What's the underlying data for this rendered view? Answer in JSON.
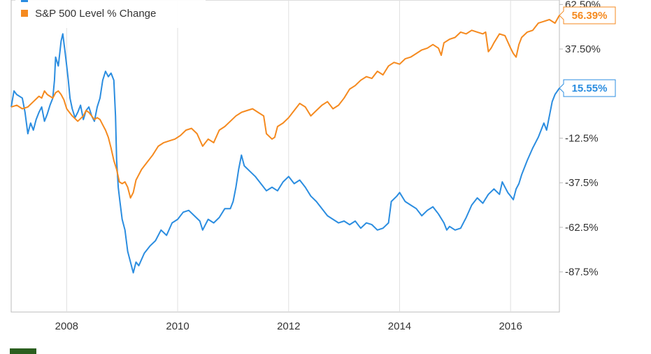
{
  "chart_data": {
    "type": "line",
    "title": "",
    "xlabel": "",
    "ylabel": "",
    "legend_position": "top-left",
    "grid": {
      "vertical": true,
      "horizontal": false
    },
    "x_range": [
      2007.0,
      2016.88
    ],
    "y_range": [
      -110,
      65
    ],
    "x_ticks": [
      {
        "value": 2008,
        "label": "2008"
      },
      {
        "value": 2010,
        "label": "2010"
      },
      {
        "value": 2012,
        "label": "2012"
      },
      {
        "value": 2014,
        "label": "2014"
      },
      {
        "value": 2016,
        "label": "2016"
      }
    ],
    "y_ticks": [
      {
        "value": 62.5,
        "label": "62.50%"
      },
      {
        "value": 37.5,
        "label": "37.50%"
      },
      {
        "value": -12.5,
        "label": "-12.5%"
      },
      {
        "value": -37.5,
        "label": "-37.5%"
      },
      {
        "value": -62.5,
        "label": "-62.5%"
      },
      {
        "value": -87.5,
        "label": "-87.5%"
      }
    ],
    "series": [
      {
        "name": "",
        "color": "#2b8de0",
        "end_label": "15.55%",
        "points": [
          [
            2007.0,
            5
          ],
          [
            2007.05,
            14
          ],
          [
            2007.1,
            12
          ],
          [
            2007.2,
            10
          ],
          [
            2007.25,
            2
          ],
          [
            2007.3,
            -10
          ],
          [
            2007.35,
            -4
          ],
          [
            2007.4,
            -8
          ],
          [
            2007.45,
            -2
          ],
          [
            2007.5,
            2
          ],
          [
            2007.55,
            5
          ],
          [
            2007.6,
            -3
          ],
          [
            2007.65,
            1
          ],
          [
            2007.7,
            6
          ],
          [
            2007.75,
            10
          ],
          [
            2007.78,
            20
          ],
          [
            2007.8,
            33
          ],
          [
            2007.85,
            28
          ],
          [
            2007.9,
            42
          ],
          [
            2007.93,
            46
          ],
          [
            2007.97,
            36
          ],
          [
            2008.0,
            28
          ],
          [
            2008.03,
            20
          ],
          [
            2008.06,
            10
          ],
          [
            2008.1,
            4
          ],
          [
            2008.15,
            -1
          ],
          [
            2008.2,
            2
          ],
          [
            2008.25,
            6
          ],
          [
            2008.3,
            -2
          ],
          [
            2008.35,
            3
          ],
          [
            2008.4,
            5
          ],
          [
            2008.45,
            0
          ],
          [
            2008.5,
            -3
          ],
          [
            2008.55,
            5
          ],
          [
            2008.6,
            10
          ],
          [
            2008.65,
            20
          ],
          [
            2008.7,
            25
          ],
          [
            2008.75,
            22
          ],
          [
            2008.8,
            24
          ],
          [
            2008.85,
            20
          ],
          [
            2008.88,
            0
          ],
          [
            2008.9,
            -25
          ],
          [
            2008.93,
            -40
          ],
          [
            2008.96,
            -48
          ],
          [
            2009.0,
            -58
          ],
          [
            2009.05,
            -64
          ],
          [
            2009.1,
            -76
          ],
          [
            2009.15,
            -82
          ],
          [
            2009.2,
            -88
          ],
          [
            2009.25,
            -82
          ],
          [
            2009.3,
            -84
          ],
          [
            2009.4,
            -77
          ],
          [
            2009.5,
            -73
          ],
          [
            2009.6,
            -70
          ],
          [
            2009.7,
            -64
          ],
          [
            2009.8,
            -67
          ],
          [
            2009.9,
            -60
          ],
          [
            2010.0,
            -58
          ],
          [
            2010.1,
            -54
          ],
          [
            2010.2,
            -53
          ],
          [
            2010.3,
            -56
          ],
          [
            2010.4,
            -59
          ],
          [
            2010.45,
            -64
          ],
          [
            2010.55,
            -58
          ],
          [
            2010.65,
            -60
          ],
          [
            2010.75,
            -57
          ],
          [
            2010.85,
            -52
          ],
          [
            2010.95,
            -52
          ],
          [
            2011.0,
            -48
          ],
          [
            2011.05,
            -40
          ],
          [
            2011.1,
            -30
          ],
          [
            2011.15,
            -22
          ],
          [
            2011.2,
            -28
          ],
          [
            2011.3,
            -31
          ],
          [
            2011.4,
            -34
          ],
          [
            2011.5,
            -38
          ],
          [
            2011.6,
            -42
          ],
          [
            2011.7,
            -40
          ],
          [
            2011.8,
            -42
          ],
          [
            2011.9,
            -37
          ],
          [
            2012.0,
            -34
          ],
          [
            2012.1,
            -38
          ],
          [
            2012.2,
            -36
          ],
          [
            2012.3,
            -40
          ],
          [
            2012.4,
            -45
          ],
          [
            2012.5,
            -48
          ],
          [
            2012.6,
            -52
          ],
          [
            2012.7,
            -56
          ],
          [
            2012.8,
            -58
          ],
          [
            2012.9,
            -60
          ],
          [
            2013.0,
            -59
          ],
          [
            2013.1,
            -61
          ],
          [
            2013.2,
            -59
          ],
          [
            2013.3,
            -63
          ],
          [
            2013.4,
            -60
          ],
          [
            2013.5,
            -61
          ],
          [
            2013.6,
            -64
          ],
          [
            2013.7,
            -63
          ],
          [
            2013.8,
            -60
          ],
          [
            2013.85,
            -48
          ],
          [
            2013.95,
            -45
          ],
          [
            2014.0,
            -43
          ],
          [
            2014.1,
            -48
          ],
          [
            2014.2,
            -50
          ],
          [
            2014.3,
            -52
          ],
          [
            2014.4,
            -56
          ],
          [
            2014.5,
            -53
          ],
          [
            2014.6,
            -51
          ],
          [
            2014.7,
            -55
          ],
          [
            2014.8,
            -60
          ],
          [
            2014.85,
            -64
          ],
          [
            2014.9,
            -62
          ],
          [
            2015.0,
            -64
          ],
          [
            2015.1,
            -63
          ],
          [
            2015.15,
            -60
          ],
          [
            2015.2,
            -57
          ],
          [
            2015.3,
            -50
          ],
          [
            2015.4,
            -46
          ],
          [
            2015.5,
            -49
          ],
          [
            2015.6,
            -44
          ],
          [
            2015.7,
            -41
          ],
          [
            2015.8,
            -44
          ],
          [
            2015.85,
            -37
          ],
          [
            2015.9,
            -40
          ],
          [
            2015.95,
            -43
          ],
          [
            2016.0,
            -45
          ],
          [
            2016.05,
            -47
          ],
          [
            2016.1,
            -41
          ],
          [
            2016.15,
            -38
          ],
          [
            2016.2,
            -33
          ],
          [
            2016.3,
            -25
          ],
          [
            2016.4,
            -18
          ],
          [
            2016.5,
            -12
          ],
          [
            2016.6,
            -4
          ],
          [
            2016.65,
            -8
          ],
          [
            2016.7,
            0
          ],
          [
            2016.75,
            8
          ],
          [
            2016.8,
            12
          ],
          [
            2016.88,
            15.55
          ]
        ]
      },
      {
        "name": "S&P 500 Level % Change",
        "color": "#f58a1f",
        "end_label": "56.39%",
        "points": [
          [
            2007.0,
            5
          ],
          [
            2007.1,
            6
          ],
          [
            2007.2,
            4
          ],
          [
            2007.3,
            5
          ],
          [
            2007.4,
            8
          ],
          [
            2007.5,
            11
          ],
          [
            2007.55,
            10
          ],
          [
            2007.6,
            14
          ],
          [
            2007.65,
            12
          ],
          [
            2007.7,
            11
          ],
          [
            2007.75,
            10
          ],
          [
            2007.8,
            13
          ],
          [
            2007.85,
            14
          ],
          [
            2007.9,
            12
          ],
          [
            2007.95,
            9
          ],
          [
            2008.0,
            4
          ],
          [
            2008.05,
            2
          ],
          [
            2008.1,
            0
          ],
          [
            2008.2,
            -3
          ],
          [
            2008.3,
            0
          ],
          [
            2008.35,
            3
          ],
          [
            2008.4,
            2
          ],
          [
            2008.5,
            -2
          ],
          [
            2008.55,
            -1
          ],
          [
            2008.6,
            -2
          ],
          [
            2008.65,
            -5
          ],
          [
            2008.7,
            -8
          ],
          [
            2008.75,
            -12
          ],
          [
            2008.8,
            -18
          ],
          [
            2008.85,
            -25
          ],
          [
            2008.9,
            -30
          ],
          [
            2008.95,
            -37
          ],
          [
            2009.0,
            -38
          ],
          [
            2009.05,
            -37
          ],
          [
            2009.1,
            -40
          ],
          [
            2009.15,
            -46
          ],
          [
            2009.2,
            -43
          ],
          [
            2009.25,
            -36
          ],
          [
            2009.35,
            -30
          ],
          [
            2009.45,
            -26
          ],
          [
            2009.55,
            -22
          ],
          [
            2009.65,
            -17
          ],
          [
            2009.75,
            -15
          ],
          [
            2009.85,
            -14
          ],
          [
            2009.95,
            -13
          ],
          [
            2010.05,
            -11
          ],
          [
            2010.15,
            -8
          ],
          [
            2010.25,
            -7
          ],
          [
            2010.35,
            -10
          ],
          [
            2010.45,
            -17
          ],
          [
            2010.55,
            -13
          ],
          [
            2010.65,
            -15
          ],
          [
            2010.75,
            -8
          ],
          [
            2010.85,
            -6
          ],
          [
            2010.95,
            -3
          ],
          [
            2011.05,
            0
          ],
          [
            2011.15,
            2
          ],
          [
            2011.25,
            3
          ],
          [
            2011.35,
            4
          ],
          [
            2011.45,
            2
          ],
          [
            2011.55,
            0
          ],
          [
            2011.6,
            -10
          ],
          [
            2011.7,
            -13
          ],
          [
            2011.75,
            -12
          ],
          [
            2011.8,
            -6
          ],
          [
            2011.9,
            -4
          ],
          [
            2012.0,
            -1
          ],
          [
            2012.1,
            3
          ],
          [
            2012.2,
            7
          ],
          [
            2012.3,
            5
          ],
          [
            2012.4,
            0
          ],
          [
            2012.5,
            3
          ],
          [
            2012.6,
            6
          ],
          [
            2012.7,
            8
          ],
          [
            2012.8,
            4
          ],
          [
            2012.9,
            6
          ],
          [
            2013.0,
            10
          ],
          [
            2013.1,
            15
          ],
          [
            2013.2,
            17
          ],
          [
            2013.3,
            20
          ],
          [
            2013.4,
            22
          ],
          [
            2013.5,
            21
          ],
          [
            2013.6,
            25
          ],
          [
            2013.7,
            23
          ],
          [
            2013.8,
            28
          ],
          [
            2013.9,
            30
          ],
          [
            2014.0,
            29
          ],
          [
            2014.1,
            32
          ],
          [
            2014.2,
            33
          ],
          [
            2014.3,
            35
          ],
          [
            2014.4,
            37
          ],
          [
            2014.5,
            38
          ],
          [
            2014.6,
            40
          ],
          [
            2014.7,
            38
          ],
          [
            2014.75,
            34
          ],
          [
            2014.8,
            41
          ],
          [
            2014.9,
            43
          ],
          [
            2015.0,
            44
          ],
          [
            2015.1,
            47
          ],
          [
            2015.2,
            46
          ],
          [
            2015.3,
            48
          ],
          [
            2015.4,
            47
          ],
          [
            2015.5,
            46
          ],
          [
            2015.55,
            47
          ],
          [
            2015.6,
            36
          ],
          [
            2015.65,
            38
          ],
          [
            2015.7,
            41
          ],
          [
            2015.8,
            46
          ],
          [
            2015.9,
            45
          ],
          [
            2016.0,
            38
          ],
          [
            2016.05,
            35
          ],
          [
            2016.1,
            33
          ],
          [
            2016.15,
            40
          ],
          [
            2016.2,
            44
          ],
          [
            2016.3,
            47
          ],
          [
            2016.4,
            48
          ],
          [
            2016.5,
            52
          ],
          [
            2016.6,
            53
          ],
          [
            2016.7,
            54
          ],
          [
            2016.8,
            52
          ],
          [
            2016.88,
            56.39
          ]
        ]
      }
    ]
  }
}
